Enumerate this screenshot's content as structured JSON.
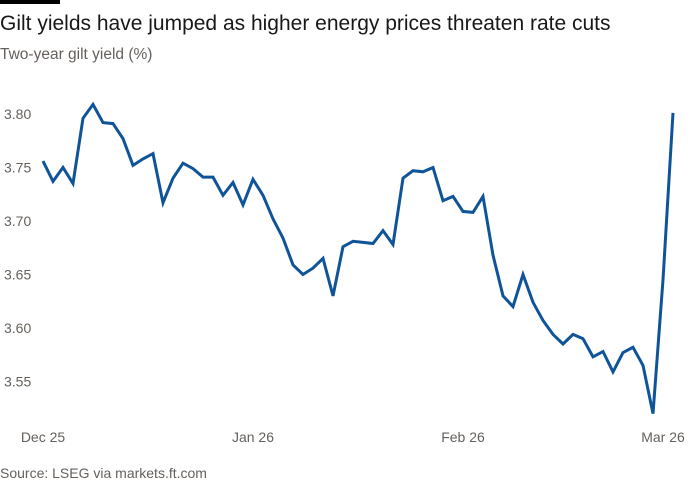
{
  "title": "Gilt yields have jumped as higher energy prices threaten rate cuts",
  "subtitle": "Two-year gilt yield (%)",
  "source": "Source: LSEG via markets.ft.com",
  "colors": {
    "line": "#0f5499",
    "text": "#66605c",
    "accent_bar": "#000000"
  },
  "chart_data": {
    "type": "line",
    "title": "Gilt yields have jumped as higher energy prices threaten rate cuts",
    "ylabel": "Two-year gilt yield (%)",
    "ylim": [
      3.52,
      3.81
    ],
    "yticks": [
      3.8,
      3.75,
      3.7,
      3.65,
      3.6,
      3.55
    ],
    "ytick_labels": [
      "3.80",
      "3.75",
      "3.70",
      "3.65",
      "3.60",
      "3.55"
    ],
    "xticks": [
      {
        "label": "Dec 25",
        "index": 0
      },
      {
        "label": "Jan 26",
        "index": 21
      },
      {
        "label": "Feb 26",
        "index": 42
      },
      {
        "label": "Mar 26",
        "index": 62
      }
    ],
    "grid": false,
    "legend": "none",
    "series": [
      {
        "values": [
          3.756,
          3.737,
          3.75,
          3.735,
          3.796,
          3.809,
          3.792,
          3.791,
          3.777,
          3.752,
          3.758,
          3.763,
          3.717,
          3.74,
          3.754,
          3.749,
          3.741,
          3.741,
          3.724,
          3.736,
          3.715,
          3.739,
          3.724,
          3.702,
          3.684,
          3.659,
          3.65,
          3.656,
          3.665,
          3.63,
          3.676,
          3.681,
          3.68,
          3.679,
          3.691,
          3.678,
          3.74,
          3.747,
          3.746,
          3.75,
          3.719,
          3.723,
          3.709,
          3.708,
          3.723,
          3.668,
          3.63,
          3.62,
          3.65,
          3.624,
          3.607,
          3.594,
          3.585,
          3.594,
          3.59,
          3.573,
          3.578,
          3.559,
          3.577,
          3.582,
          3.565,
          3.52,
          3.645,
          3.801
        ]
      }
    ]
  }
}
